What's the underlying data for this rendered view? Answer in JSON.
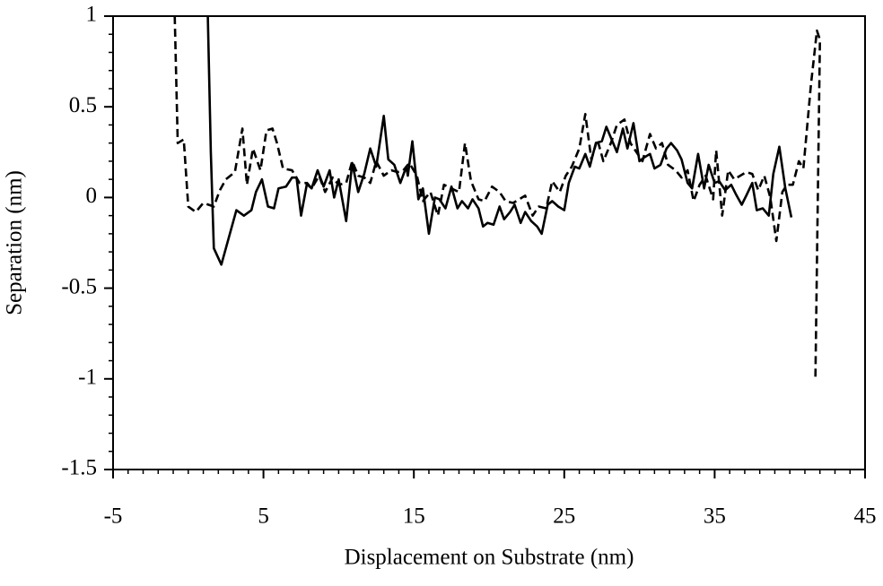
{
  "chart_data": {
    "type": "line",
    "xlabel": "Displacement on Substrate (nm)",
    "ylabel": "Separation (nm)",
    "xlim": [
      -5,
      45
    ],
    "xticks": [
      -5,
      5,
      15,
      25,
      35,
      45
    ],
    "xminor_step": 1,
    "ylim": [
      -1.5,
      1
    ],
    "yticks": [
      -1.5,
      -1,
      -0.5,
      0,
      0.5,
      1
    ],
    "yminor_step": 0.1,
    "series": [
      {
        "color": "#000000",
        "line_style": "solid",
        "x": [
          1.3,
          1.5,
          1.7,
          2.2,
          2.7,
          3.2,
          3.7,
          4.2,
          4.5,
          4.9,
          5.3,
          5.7,
          6.0,
          6.5,
          6.9,
          7.2,
          7.5,
          7.9,
          8.2,
          8.6,
          9.0,
          9.4,
          9.7,
          10.0,
          10.5,
          10.9,
          11.3,
          11.7,
          12.1,
          12.5,
          13.0,
          13.3,
          13.7,
          14.1,
          14.5,
          14.6,
          14.9,
          15.3,
          15.6,
          16.0,
          16.4,
          16.7,
          17.1,
          17.5,
          17.9,
          18.2,
          18.6,
          18.9,
          19.3,
          19.6,
          19.9,
          20.3,
          20.7,
          21.0,
          21.4,
          21.7,
          22.1,
          22.4,
          22.8,
          23.2,
          23.5,
          23.9,
          24.2,
          24.6,
          25.0,
          25.3,
          25.7,
          26.0,
          26.4,
          26.7,
          27.1,
          27.5,
          27.8,
          28.2,
          28.5,
          28.9,
          29.2,
          29.6,
          30.0,
          30.3,
          30.7,
          31.0,
          31.4,
          31.8,
          32.1,
          32.5,
          32.8,
          33.2,
          33.5,
          33.9,
          34.3,
          34.6,
          35.0,
          35.3,
          35.7,
          36.1,
          36.4,
          36.8,
          37.1,
          37.5,
          37.8,
          38.2,
          38.6,
          38.9,
          39.3,
          39.7,
          40.1
        ],
        "values": [
          1,
          0.25,
          -0.28,
          -0.37,
          -0.22,
          -0.07,
          -0.1,
          -0.07,
          0.03,
          0.1,
          -0.05,
          -0.06,
          0.05,
          0.06,
          0.11,
          0.11,
          -0.1,
          0.08,
          0.05,
          0.15,
          0.06,
          0.15,
          0,
          0.1,
          -0.13,
          0.19,
          0.03,
          0.13,
          0.27,
          0.17,
          0.45,
          0.21,
          0.18,
          0.08,
          0.17,
          0.12,
          0.31,
          -0.01,
          0.05,
          -0.2,
          0,
          -0.01,
          -0.06,
          0.06,
          -0.06,
          -0.02,
          -0.06,
          -0.01,
          -0.06,
          -0.16,
          -0.14,
          -0.15,
          -0.05,
          -0.12,
          -0.08,
          -0.04,
          -0.14,
          -0.08,
          -0.13,
          -0.16,
          -0.2,
          -0.04,
          -0.02,
          -0.05,
          -0.07,
          0.08,
          0.17,
          0.16,
          0.24,
          0.17,
          0.3,
          0.31,
          0.39,
          0.31,
          0.25,
          0.38,
          0.27,
          0.41,
          0.2,
          0.22,
          0.24,
          0.16,
          0.18,
          0.27,
          0.3,
          0.26,
          0.21,
          0.08,
          0.05,
          0.24,
          0.05,
          0.18,
          0.08,
          0.09,
          0.04,
          0.07,
          0.02,
          -0.04,
          0.01,
          0.08,
          -0.07,
          -0.06,
          -0.1,
          0.13,
          0.28,
          0.05,
          -0.11
        ]
      },
      {
        "color": "#000000",
        "line_style": "dashed",
        "x": [
          -0.9,
          -0.7,
          -0.3,
          0.0,
          0.5,
          1.0,
          1.7,
          2.1,
          2.5,
          3.1,
          3.6,
          3.9,
          4.3,
          4.8,
          5.2,
          5.6,
          5.9,
          6.3,
          6.9,
          7.4,
          7.8,
          8.2,
          8.7,
          9.1,
          9.6,
          10.0,
          10.5,
          10.9,
          11.3,
          11.7,
          12.1,
          12.5,
          13.0,
          13.5,
          13.9,
          14.3,
          14.7,
          15.2,
          15.6,
          16.1,
          16.6,
          17.0,
          17.5,
          18.0,
          18.4,
          18.8,
          19.3,
          19.7,
          20.2,
          20.7,
          21.1,
          21.6,
          22.0,
          22.4,
          22.9,
          23.3,
          23.8,
          24.2,
          24.7,
          25.1,
          25.5,
          26.0,
          26.4,
          26.8,
          27.2,
          27.6,
          28.1,
          28.5,
          29.0,
          29.4,
          29.8,
          30.2,
          30.7,
          31.1,
          31.5,
          31.9,
          32.4,
          32.8,
          33.2,
          33.6,
          34.0,
          34.4,
          34.9,
          35.1,
          35.5,
          35.9,
          36.3,
          36.7,
          37.1,
          37.5,
          37.9,
          38.3,
          38.7,
          39.1,
          39.5,
          39.8,
          40.2,
          40.6,
          40.9,
          41.4,
          41.8,
          42.0,
          41.7
        ],
        "values": [
          1,
          0.3,
          0.32,
          -0.05,
          -0.08,
          -0.03,
          -0.05,
          0.04,
          0.1,
          0.14,
          0.38,
          0.07,
          0.27,
          0.15,
          0.37,
          0.38,
          0.3,
          0.16,
          0.15,
          0.08,
          0.08,
          0.05,
          0.12,
          0.03,
          0.11,
          0.07,
          0.08,
          0.2,
          0.12,
          0.11,
          0.08,
          0.2,
          0.12,
          0.15,
          0.14,
          0.15,
          0.19,
          0.12,
          -0.02,
          0.03,
          -0.1,
          0.07,
          0.05,
          0.03,
          0.3,
          0.09,
          -0.01,
          -0.02,
          0.06,
          0.03,
          -0.02,
          -0.03,
          -0.01,
          0.01,
          -0.1,
          -0.05,
          -0.06,
          0.09,
          0.03,
          0.12,
          0.17,
          0.27,
          0.46,
          0.21,
          0.32,
          0.2,
          0.3,
          0.4,
          0.43,
          0.3,
          0.25,
          0.2,
          0.35,
          0.27,
          0.3,
          0.18,
          0.15,
          0.11,
          0.15,
          -0.02,
          0.07,
          0.12,
          -0.01,
          0.26,
          -0.1,
          0.15,
          0.1,
          0.12,
          0.14,
          0.13,
          0.04,
          0.12,
          0,
          -0.24,
          0.03,
          0.07,
          0.07,
          0.2,
          0.16,
          0.62,
          0.92,
          0.87,
          -0.99
        ]
      }
    ]
  }
}
